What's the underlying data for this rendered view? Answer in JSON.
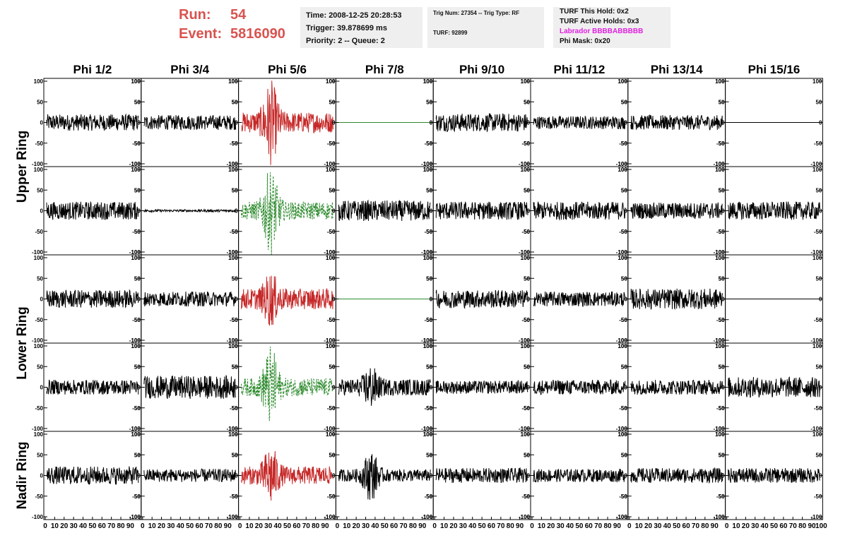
{
  "header": {
    "run_label": "Run:",
    "run_value": "54",
    "event_label": "Event:",
    "event_value": "5816090",
    "time": "Time: 2008-12-25 20:28:53",
    "trigger": "Trigger: 39.878699 ms",
    "priority": "Priority: 2 -- Queue: 2",
    "trig_num": "Trig Num: 27354 -- Trig Type: RF",
    "turf": "TURF: 92899",
    "turf_this_hold": "TURF This Hold: 0x2",
    "turf_active_holds": "TURF Active Holds: 0x3",
    "labrador": "Labrador BBBBABBBBB",
    "phi_mask": "Phi Mask: 0x20"
  },
  "colors": {
    "run_text": "#d9534f",
    "labrador_text": "#e020e0",
    "trace_default": "#000000",
    "trace_triggered_hpol": "#c62828",
    "trace_triggered_vpol": "#2e8b2e",
    "trace_flat_green": "#2e8b2e",
    "info_box_bg": "#efefef"
  },
  "columns": [
    "Phi 1/2",
    "Phi 3/4",
    "Phi 5/6",
    "Phi 7/8",
    "Phi 9/10",
    "Phi 11/12",
    "Phi 13/14",
    "Phi 15/16"
  ],
  "ring_labels": [
    {
      "label": "Upper Ring"
    },
    {
      "label": "Lower Ring"
    },
    {
      "label": "Nadir Ring"
    }
  ],
  "chart_data": {
    "type": "line",
    "xlim": [
      0,
      100
    ],
    "ylim": [
      -100,
      100
    ],
    "ytick_labels": [
      "100",
      "50",
      "0",
      "-50",
      "-100"
    ],
    "xtick_labels": [
      "0",
      "10",
      "20",
      "30",
      "40",
      "50",
      "60",
      "70",
      "80",
      "90",
      "100"
    ],
    "rows": [
      {
        "ring": "Upper Ring",
        "cells": [
          {
            "style": "black",
            "amp": 20,
            "burst": 0
          },
          {
            "style": "black",
            "amp": 18,
            "burst": 0
          },
          {
            "style": "red",
            "amp": 25,
            "burst": 80
          },
          {
            "style": "flat-green",
            "amp": 0,
            "burst": 0
          },
          {
            "style": "black",
            "amp": 22,
            "burst": 0
          },
          {
            "style": "black",
            "amp": 16,
            "burst": 0
          },
          {
            "style": "black",
            "amp": 18,
            "burst": 0
          },
          {
            "style": "flat-black",
            "amp": 0,
            "burst": 0
          }
        ]
      },
      {
        "ring": "Upper Ring",
        "cells": [
          {
            "style": "black",
            "amp": 22,
            "burst": 0
          },
          {
            "style": "black",
            "amp": 3,
            "burst": 0
          },
          {
            "style": "green-dash",
            "amp": 22,
            "burst": 85
          },
          {
            "style": "black",
            "amp": 25,
            "burst": 0
          },
          {
            "style": "black",
            "amp": 22,
            "burst": 0
          },
          {
            "style": "black",
            "amp": 22,
            "burst": 0
          },
          {
            "style": "black",
            "amp": 20,
            "burst": 0
          },
          {
            "style": "black",
            "amp": 22,
            "burst": 0
          }
        ]
      },
      {
        "ring": "Lower Ring",
        "cells": [
          {
            "style": "black",
            "amp": 22,
            "burst": 0
          },
          {
            "style": "black",
            "amp": 18,
            "burst": 0
          },
          {
            "style": "red",
            "amp": 25,
            "burst": 45
          },
          {
            "style": "flat-green",
            "amp": 0,
            "burst": 0
          },
          {
            "style": "black",
            "amp": 22,
            "burst": 0
          },
          {
            "style": "black",
            "amp": 18,
            "burst": 0
          },
          {
            "style": "black",
            "amp": 25,
            "burst": 0
          },
          {
            "style": "flat-black",
            "amp": 0,
            "burst": 0
          }
        ]
      },
      {
        "ring": "Lower Ring",
        "cells": [
          {
            "style": "black",
            "amp": 18,
            "burst": 0
          },
          {
            "style": "black",
            "amp": 28,
            "burst": 0
          },
          {
            "style": "green-dash",
            "amp": 22,
            "burst": 80
          },
          {
            "style": "black",
            "amp": 20,
            "burst": 35
          },
          {
            "style": "black",
            "amp": 16,
            "burst": 0
          },
          {
            "style": "black",
            "amp": 18,
            "burst": 0
          },
          {
            "style": "black",
            "amp": 18,
            "burst": 0
          },
          {
            "style": "black",
            "amp": 25,
            "burst": 0
          }
        ]
      },
      {
        "ring": "Nadir Ring",
        "cells": [
          {
            "style": "black",
            "amp": 22,
            "burst": 0
          },
          {
            "style": "black",
            "amp": 16,
            "burst": 0
          },
          {
            "style": "red",
            "amp": 22,
            "burst": 55
          },
          {
            "style": "black",
            "amp": 15,
            "burst": 50
          },
          {
            "style": "black",
            "amp": 18,
            "burst": 0
          },
          {
            "style": "black",
            "amp": 16,
            "burst": 0
          },
          {
            "style": "black",
            "amp": 18,
            "burst": 0
          },
          {
            "style": "black",
            "amp": 18,
            "burst": 0
          }
        ]
      }
    ]
  }
}
